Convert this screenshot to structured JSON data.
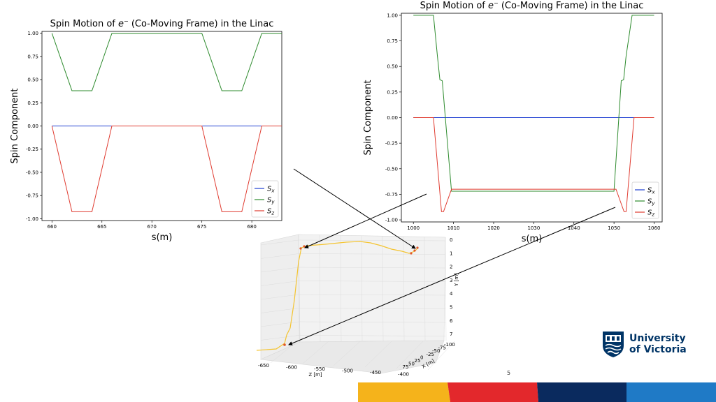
{
  "chart_data": [
    {
      "type": "line",
      "title_prefix": "Spin Motion of ",
      "title_particle": "e",
      "title_sup": "−",
      "title_suffix": " (Co-Moving Frame) in the Linac",
      "xlabel": "s(m)",
      "ylabel": "Spin Component",
      "xlim": [
        659,
        683
      ],
      "ylim": [
        -1.02,
        1.02
      ],
      "xticks": [
        660,
        665,
        670,
        675,
        680
      ],
      "yticks": [
        "1.00",
        "0.75",
        "0.50",
        "0.25",
        "0.00",
        "-0.25",
        "-0.50",
        "-0.75",
        "-1.00"
      ],
      "legend_position": "lower-right",
      "series": [
        {
          "name": "S",
          "sub": "x",
          "color": "#1f3fd1",
          "x": [
            660,
            683
          ],
          "y": [
            0,
            0
          ]
        },
        {
          "name": "S",
          "sub": "y",
          "color": "#2e8b2e",
          "x": [
            660,
            662,
            664,
            666,
            675,
            677,
            679,
            681,
            683
          ],
          "y": [
            1.0,
            0.38,
            0.38,
            1.0,
            1.0,
            0.38,
            0.38,
            1.0,
            1.0
          ]
        },
        {
          "name": "S",
          "sub": "z",
          "color": "#e03c31",
          "x": [
            660,
            662,
            664,
            666,
            675,
            677,
            679,
            681,
            683
          ],
          "y": [
            0,
            -0.925,
            -0.925,
            0,
            0,
            -0.925,
            -0.925,
            0,
            0
          ]
        }
      ]
    },
    {
      "type": "line",
      "title_prefix": "Spin Motion of ",
      "title_particle": "e",
      "title_sup": "−",
      "title_suffix": " (Co-Moving Frame) in the Linac",
      "xlabel": "s(m)",
      "ylabel": "Spin Component",
      "xlim": [
        997,
        1062
      ],
      "ylim": [
        -1.02,
        1.02
      ],
      "xticks": [
        1000,
        1010,
        1020,
        1030,
        1040,
        1050,
        1060
      ],
      "yticks": [
        "1.00",
        "0.75",
        "0.50",
        "0.25",
        "0.00",
        "-0.25",
        "-0.50",
        "-0.75",
        "-1.00"
      ],
      "legend_position": "lower-right",
      "series": [
        {
          "name": "S",
          "sub": "x",
          "color": "#1f3fd1",
          "x": [
            1000,
            1060
          ],
          "y": [
            0,
            0
          ]
        },
        {
          "name": "S",
          "sub": "y",
          "color": "#2e8b2e",
          "x": [
            1000,
            1005,
            1006,
            1006.6,
            1007.2,
            1009.5,
            1050,
            1051.8,
            1052.4,
            1053,
            1054.5,
            1060
          ],
          "y": [
            1.0,
            1.0,
            0.6,
            0.37,
            0.36,
            -0.72,
            -0.72,
            0.36,
            0.37,
            0.6,
            1.0,
            1.0
          ]
        },
        {
          "name": "S",
          "sub": "z",
          "color": "#e03c31",
          "x": [
            1000,
            1005,
            1007,
            1007.5,
            1009.5,
            1050.5,
            1052.5,
            1053,
            1055,
            1060
          ],
          "y": [
            0,
            0,
            -0.92,
            -0.92,
            -0.7,
            -0.7,
            -0.92,
            -0.92,
            0,
            0
          ]
        }
      ]
    },
    {
      "type": "line3d",
      "xlabel": "Z [m]",
      "ylabel": "X [m]",
      "zlabel": "Y [m]",
      "z_ticks": [
        "-650",
        "-600",
        "-550",
        "-500",
        "-450",
        "-400"
      ],
      "x_ticks": [
        "-100",
        "-75",
        "-50",
        "-25",
        "0",
        "25",
        "50",
        "75"
      ],
      "y_ticks": [
        "0",
        "1",
        "2",
        "3",
        "4",
        "5",
        "6",
        "7"
      ],
      "trajectory_color": "#f4c430",
      "marker_color": "#e0562a"
    }
  ],
  "footer": {
    "logo_line1": "University",
    "logo_line2": "of Victoria",
    "slide_number": "5",
    "stripe_colors": [
      "#f5b31b",
      "#e3282c",
      "#0a2a5e",
      "#1f7ac6"
    ]
  }
}
